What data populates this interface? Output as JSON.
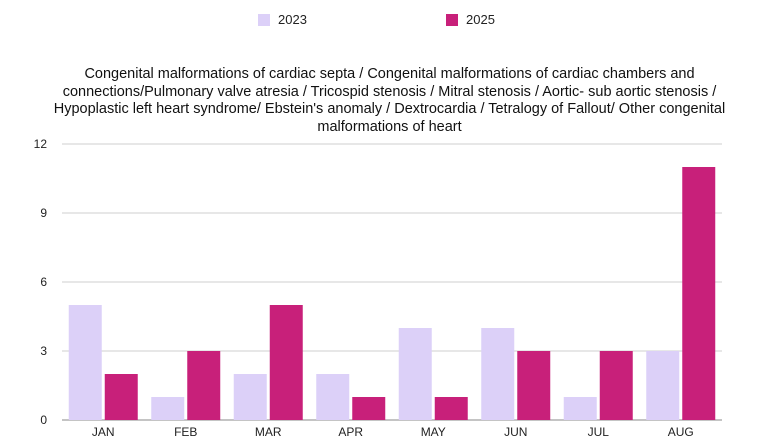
{
  "chart_data": {
    "type": "bar",
    "title": "Congenital malformations of cardiac septa / Congenital malformations of cardiac chambers and connections/Pulmonary valve atresia / Tricospid stenosis / Mitral stenosis / Aortic- sub aortic stenosis / Hypoplastic left heart syndrome/ Ebstein's anomaly / Dextrocardia / Tetralogy of Fallout/ Other congenital malformations of heart",
    "categories": [
      "JAN",
      "FEB",
      "MAR",
      "APR",
      "MAY",
      "JUN",
      "JUL",
      "AUG"
    ],
    "series": [
      {
        "name": "2023",
        "color": "#dcd0f8",
        "values": [
          5,
          1,
          2,
          2,
          4,
          4,
          1,
          3
        ]
      },
      {
        "name": "2025",
        "color": "#c8207a",
        "values": [
          2,
          3,
          5,
          1,
          1,
          3,
          3,
          11
        ]
      }
    ],
    "ylim": [
      0,
      12
    ],
    "yticks": [
      0,
      3,
      6,
      9,
      12
    ],
    "grid": true,
    "legend": "top-center"
  }
}
